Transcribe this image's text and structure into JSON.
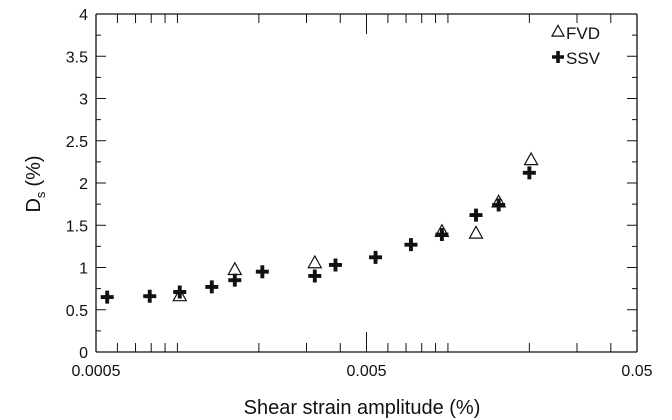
{
  "chart_data": {
    "type": "scatter",
    "xlabel": "Shear strain amplitude (%)",
    "ylabel_main": "D",
    "ylabel_sub": "s",
    "ylabel_unit": "(%)",
    "xscale": "log",
    "xlim": [
      0.0005,
      0.05
    ],
    "ylim": [
      0,
      4
    ],
    "grid": false,
    "legend_position": "top-right",
    "x_tick_labels": [
      {
        "value": 0.0005,
        "label": "0.0005"
      },
      {
        "value": 0.005,
        "label": "0.005"
      },
      {
        "value": 0.05,
        "label": "0.05"
      }
    ],
    "y_tick_labels": [
      {
        "value": 0,
        "label": "0"
      },
      {
        "value": 0.5,
        "label": "0.5"
      },
      {
        "value": 1,
        "label": "1"
      },
      {
        "value": 1.5,
        "label": "1.5"
      },
      {
        "value": 2,
        "label": "2"
      },
      {
        "value": 2.5,
        "label": "2.5"
      },
      {
        "value": 3,
        "label": "3"
      },
      {
        "value": 3.5,
        "label": "3.5"
      },
      {
        "value": 4,
        "label": "4"
      }
    ],
    "series": [
      {
        "name": "FVD",
        "marker": "triangle-open",
        "color": "#111111",
        "points": [
          {
            "x": 0.00102,
            "y": 0.66
          },
          {
            "x": 0.00163,
            "y": 0.97
          },
          {
            "x": 0.00322,
            "y": 1.05
          },
          {
            "x": 0.0095,
            "y": 1.42
          },
          {
            "x": 0.0127,
            "y": 1.4
          },
          {
            "x": 0.0154,
            "y": 1.77
          },
          {
            "x": 0.0203,
            "y": 2.27
          }
        ]
      },
      {
        "name": "SSV",
        "marker": "plus-bold",
        "color": "#111111",
        "points": [
          {
            "x": 0.00055,
            "y": 0.65
          },
          {
            "x": 0.00079,
            "y": 0.66
          },
          {
            "x": 0.00102,
            "y": 0.71
          },
          {
            "x": 0.00134,
            "y": 0.77
          },
          {
            "x": 0.00163,
            "y": 0.85
          },
          {
            "x": 0.00206,
            "y": 0.95
          },
          {
            "x": 0.00322,
            "y": 0.9
          },
          {
            "x": 0.00384,
            "y": 1.03
          },
          {
            "x": 0.0054,
            "y": 1.12
          },
          {
            "x": 0.0073,
            "y": 1.27
          },
          {
            "x": 0.0095,
            "y": 1.39
          },
          {
            "x": 0.0127,
            "y": 1.62
          },
          {
            "x": 0.0154,
            "y": 1.74
          },
          {
            "x": 0.02,
            "y": 2.12
          }
        ]
      }
    ]
  }
}
